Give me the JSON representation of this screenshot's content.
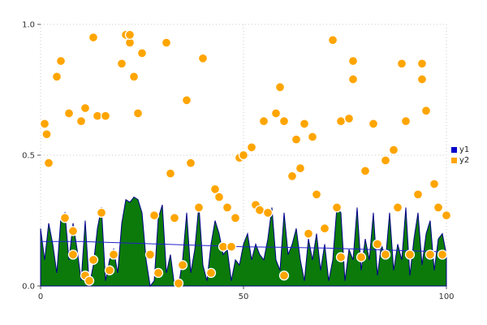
{
  "chart_data": {
    "type": "mixed",
    "title": "",
    "xlabel": "",
    "ylabel": "",
    "xlim": [
      0,
      100
    ],
    "ylim": [
      0.0,
      1.0
    ],
    "grid": true,
    "xticks": [
      0,
      50,
      100
    ],
    "xtick_labels": [
      "0",
      "50",
      "100"
    ],
    "yticks": [
      0.0,
      0.5,
      1.0
    ],
    "ytick_labels": [
      "0.0",
      "0.5",
      "1.0"
    ],
    "legend": {
      "position": "right",
      "entries": [
        {
          "label": "y1",
          "color": "#0000cc"
        },
        {
          "label": "y2",
          "color": "#ffa500"
        }
      ]
    },
    "series": [
      {
        "name": "y1",
        "type": "area",
        "fill_color": "#0b7a0b",
        "edge_color": "#00008b",
        "x_start": 0,
        "x_step": 1,
        "values": [
          0.22,
          0.1,
          0.24,
          0.16,
          0.05,
          0.26,
          0.28,
          0.1,
          0.24,
          0.14,
          0.02,
          0.25,
          0.0,
          0.08,
          0.22,
          0.3,
          0.02,
          0.1,
          0.14,
          0.05,
          0.24,
          0.33,
          0.32,
          0.34,
          0.33,
          0.28,
          0.1,
          0.0,
          0.02,
          0.26,
          0.31,
          0.05,
          0.12,
          0.0,
          0.0,
          0.1,
          0.28,
          0.05,
          0.14,
          0.31,
          0.08,
          0.02,
          0.16,
          0.25,
          0.2,
          0.12,
          0.14,
          0.02,
          0.1,
          0.08,
          0.16,
          0.2,
          0.1,
          0.16,
          0.12,
          0.1,
          0.18,
          0.3,
          0.1,
          0.06,
          0.28,
          0.12,
          0.16,
          0.22,
          0.1,
          0.02,
          0.18,
          0.1,
          0.2,
          0.06,
          0.16,
          0.02,
          0.1,
          0.3,
          0.28,
          0.02,
          0.14,
          0.1,
          0.3,
          0.06,
          0.18,
          0.1,
          0.28,
          0.04,
          0.16,
          0.1,
          0.28,
          0.06,
          0.16,
          0.1,
          0.3,
          0.04,
          0.18,
          0.28,
          0.08,
          0.2,
          0.25,
          0.06,
          0.18,
          0.2,
          0.12
        ]
      },
      {
        "name": "y1-line",
        "type": "line",
        "color": "#2222cc",
        "x": [
          0,
          10,
          20,
          30,
          40,
          50,
          60,
          70,
          80,
          90,
          100
        ],
        "values": [
          0.17,
          0.17,
          0.165,
          0.16,
          0.155,
          0.15,
          0.148,
          0.145,
          0.14,
          0.135,
          0.13
        ]
      },
      {
        "name": "y2",
        "type": "scatter",
        "color": "#ffa500",
        "edge_color": "#ffffff",
        "points": [
          [
            1,
            0.62
          ],
          [
            1.5,
            0.58
          ],
          [
            2,
            0.47
          ],
          [
            4,
            0.8
          ],
          [
            5,
            0.86
          ],
          [
            6,
            0.26
          ],
          [
            7,
            0.66
          ],
          [
            8,
            0.21
          ],
          [
            8,
            0.12
          ],
          [
            10,
            0.63
          ],
          [
            11,
            0.68
          ],
          [
            11,
            0.04
          ],
          [
            12,
            0.02
          ],
          [
            13,
            0.95
          ],
          [
            13,
            0.1
          ],
          [
            14,
            0.65
          ],
          [
            15,
            0.28
          ],
          [
            16,
            0.65
          ],
          [
            17,
            0.06
          ],
          [
            18,
            0.12
          ],
          [
            20,
            0.85
          ],
          [
            21,
            0.96
          ],
          [
            22,
            0.93
          ],
          [
            22,
            0.96
          ],
          [
            23,
            0.8
          ],
          [
            24,
            0.66
          ],
          [
            25,
            0.89
          ],
          [
            27,
            0.12
          ],
          [
            28,
            0.27
          ],
          [
            29,
            0.05
          ],
          [
            31,
            0.93
          ],
          [
            32,
            0.43
          ],
          [
            33,
            0.26
          ],
          [
            34,
            0.01
          ],
          [
            35,
            0.08
          ],
          [
            36,
            0.71
          ],
          [
            37,
            0.47
          ],
          [
            39,
            0.3
          ],
          [
            40,
            0.87
          ],
          [
            42,
            0.05
          ],
          [
            43,
            0.37
          ],
          [
            44,
            0.34
          ],
          [
            45,
            0.15
          ],
          [
            46,
            0.3
          ],
          [
            47,
            0.15
          ],
          [
            48,
            0.26
          ],
          [
            49,
            0.49
          ],
          [
            50,
            0.5
          ],
          [
            52,
            0.53
          ],
          [
            53,
            0.31
          ],
          [
            54,
            0.29
          ],
          [
            55,
            0.63
          ],
          [
            56,
            0.28
          ],
          [
            58,
            0.66
          ],
          [
            59,
            0.76
          ],
          [
            60,
            0.63
          ],
          [
            60,
            0.04
          ],
          [
            62,
            0.42
          ],
          [
            63,
            0.56
          ],
          [
            64,
            0.45
          ],
          [
            65,
            0.62
          ],
          [
            66,
            0.2
          ],
          [
            67,
            0.57
          ],
          [
            68,
            0.35
          ],
          [
            70,
            0.22
          ],
          [
            72,
            0.94
          ],
          [
            73,
            0.3
          ],
          [
            74,
            0.63
          ],
          [
            74,
            0.11
          ],
          [
            76,
            0.64
          ],
          [
            77,
            0.86
          ],
          [
            77,
            0.79
          ],
          [
            79,
            0.11
          ],
          [
            80,
            0.44
          ],
          [
            82,
            0.62
          ],
          [
            83,
            0.16
          ],
          [
            85,
            0.48
          ],
          [
            85,
            0.12
          ],
          [
            87,
            0.52
          ],
          [
            88,
            0.3
          ],
          [
            89,
            0.85
          ],
          [
            90,
            0.63
          ],
          [
            91,
            0.12
          ],
          [
            93,
            0.35
          ],
          [
            94,
            0.85
          ],
          [
            94,
            0.79
          ],
          [
            95,
            0.67
          ],
          [
            96,
            0.12
          ],
          [
            97,
            0.39
          ],
          [
            98,
            0.3
          ],
          [
            99,
            0.12
          ],
          [
            100,
            0.27
          ]
        ]
      }
    ]
  }
}
